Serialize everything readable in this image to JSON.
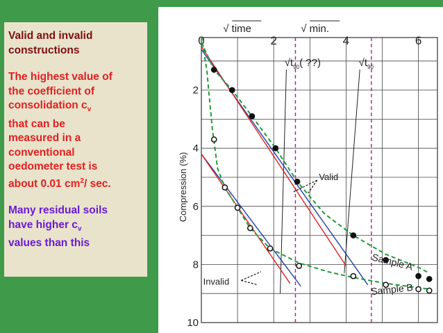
{
  "slide": {
    "heading": [
      "Valid and invalid",
      "constructions"
    ],
    "red_text": {
      "lines": [
        "The highest value of",
        "the coefficient of"
      ],
      "cv_prefix": "consolidation c",
      "cv_sub": "v",
      "more_lines": [
        "that can be",
        "measured in a",
        "conventional",
        "oedometer test is"
      ],
      "last_prefix": "about 0.01 cm",
      "last_sup": "2",
      "last_suffix": "/ sec."
    },
    "purple_text": {
      "line1": "Many residual soils",
      "line2_prefix": "have higher c",
      "line2_sub": "v",
      "line3": "values than this"
    }
  },
  "colors": {
    "background": "#3f9a4a",
    "panel": "#e9e3cc",
    "valid_line": "#1f3fa8",
    "invalid_line": "#e02020",
    "dashed_curve": "#1f9a3a",
    "t90_marker": "#b01a8a"
  },
  "chart_data": {
    "type": "scatter",
    "x_tick_labels": [
      "0",
      "2",
      "4",
      "6"
    ],
    "x_top_labels": {
      "time": "√ time",
      "min": "√ min."
    },
    "ylabel": "Compression (%)",
    "y_tick_labels": [
      "2",
      "4",
      "6",
      "8",
      "10"
    ],
    "xlim": [
      0,
      6.3
    ],
    "ylim": [
      10,
      0
    ],
    "grid": true,
    "annotations": {
      "t90_unknown": {
        "prefix": "√t",
        "sub": "90",
        "suffix": "( ??)",
        "x": 2.6
      },
      "t90": {
        "prefix": "√t",
        "sub": "90",
        "x": 4.7
      },
      "valid": "Valid",
      "invalid": "Invalid",
      "sample_a": "Sample A",
      "sample_b": "Sample B"
    },
    "series": [
      {
        "name": "Sample A",
        "marker": "filled",
        "points": [
          [
            0.35,
            1.3
          ],
          [
            0.85,
            2.0
          ],
          [
            1.4,
            2.9
          ],
          [
            2.05,
            4.0
          ],
          [
            2.65,
            5.15
          ],
          [
            4.2,
            7.0
          ],
          [
            5.1,
            7.85
          ],
          [
            6.0,
            8.4
          ],
          [
            6.3,
            8.5
          ]
        ],
        "curve": [
          [
            0.0,
            0.35
          ],
          [
            0.35,
            1.3
          ],
          [
            0.85,
            2.0
          ],
          [
            1.4,
            2.9
          ],
          [
            2.05,
            4.0
          ],
          [
            2.65,
            5.15
          ],
          [
            3.4,
            6.25
          ],
          [
            4.2,
            7.0
          ],
          [
            5.1,
            7.65
          ],
          [
            6.0,
            8.1
          ],
          [
            6.3,
            8.3
          ]
        ]
      },
      {
        "name": "Sample B",
        "marker": "open",
        "points": [
          [
            0.35,
            3.7
          ],
          [
            0.65,
            5.35
          ],
          [
            1.0,
            6.05
          ],
          [
            1.35,
            6.75
          ],
          [
            1.9,
            7.45
          ],
          [
            2.7,
            8.05
          ],
          [
            4.2,
            8.4
          ],
          [
            5.1,
            8.7
          ],
          [
            6.0,
            8.85
          ],
          [
            6.3,
            8.9
          ]
        ],
        "curve": [
          [
            0.0,
            0.15
          ],
          [
            0.15,
            1.3
          ],
          [
            0.3,
            3.3
          ],
          [
            0.45,
            4.7
          ],
          [
            0.65,
            5.35
          ],
          [
            1.0,
            6.05
          ],
          [
            1.35,
            6.75
          ],
          [
            1.9,
            7.45
          ],
          [
            2.7,
            7.95
          ],
          [
            3.5,
            8.25
          ],
          [
            4.2,
            8.45
          ],
          [
            5.1,
            8.65
          ],
          [
            6.0,
            8.8
          ],
          [
            6.3,
            8.85
          ]
        ]
      }
    ],
    "lines": [
      {
        "name": "Sample A valid",
        "kind": "valid",
        "from": [
          0.0,
          0.6
        ],
        "to": [
          4.6,
          8.7
        ]
      },
      {
        "name": "Sample A invalid",
        "kind": "invalid",
        "from": [
          0.0,
          0.5
        ],
        "to": [
          4.0,
          8.05
        ]
      },
      {
        "name": "Sample B valid",
        "kind": "valid",
        "from": [
          0.0,
          4.2
        ],
        "to": [
          2.75,
          8.75
        ]
      },
      {
        "name": "Sample B invalid",
        "kind": "invalid",
        "from": [
          0.0,
          4.2
        ],
        "to": [
          2.45,
          8.65
        ]
      }
    ]
  }
}
